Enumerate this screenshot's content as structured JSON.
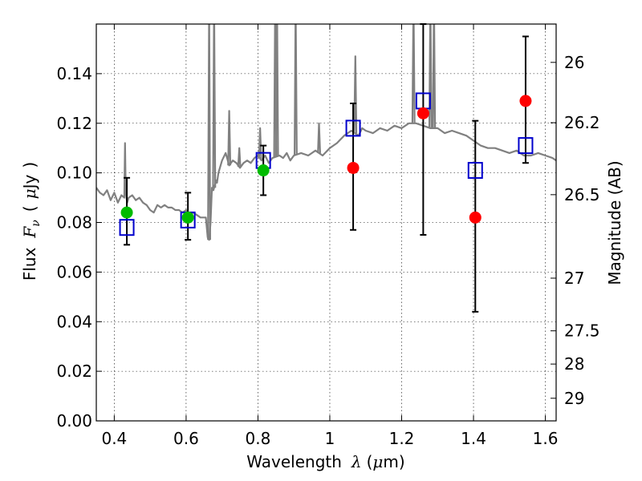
{
  "chart_data": {
    "type": "scatter",
    "xlabel": {
      "prefix": "Wavelength",
      "symbol": "λ",
      "unit_open": "(",
      "unit_mu": "μ",
      "unit_rest": "m)"
    },
    "ylabel": {
      "prefix": "Flux",
      "symbol": "F",
      "subscript": "ν",
      "unit_open": "(",
      "unit_mu": "μ",
      "unit_rest": "Jy",
      "unit_close": ")"
    },
    "y2label": "Magnitude (AB)",
    "xlim": [
      0.35,
      1.63
    ],
    "ylim": [
      0.0,
      0.16
    ],
    "grid": true,
    "x_ticks": [
      {
        "value": 0.4,
        "label": "0.4"
      },
      {
        "value": 0.6,
        "label": "0.6"
      },
      {
        "value": 0.8,
        "label": "0.8"
      },
      {
        "value": 1.0,
        "label": "1"
      },
      {
        "value": 1.2,
        "label": "1.2"
      },
      {
        "value": 1.4,
        "label": "1.4"
      },
      {
        "value": 1.6,
        "label": "1.6"
      }
    ],
    "y_ticks": [
      {
        "value": 0.0,
        "label": "0.00"
      },
      {
        "value": 0.02,
        "label": "0.02"
      },
      {
        "value": 0.04,
        "label": "0.04"
      },
      {
        "value": 0.06,
        "label": "0.06"
      },
      {
        "value": 0.08,
        "label": "0.08"
      },
      {
        "value": 0.1,
        "label": "0.10"
      },
      {
        "value": 0.12,
        "label": "0.12"
      },
      {
        "value": 0.14,
        "label": "0.14"
      }
    ],
    "y2_ticks": [
      {
        "mag": 26,
        "label": "26"
      },
      {
        "mag": 26.2,
        "label": "26.2"
      },
      {
        "mag": 26.5,
        "label": "26.5"
      },
      {
        "mag": 27,
        "label": "27"
      },
      {
        "mag": 27.5,
        "label": "27.5"
      },
      {
        "mag": 28,
        "label": "28"
      },
      {
        "mag": 29,
        "label": "29"
      }
    ],
    "model_spectrum": {
      "color": "#808080",
      "x": [
        0.35,
        0.36,
        0.37,
        0.38,
        0.39,
        0.4,
        0.41,
        0.42,
        0.428,
        0.43,
        0.432,
        0.436,
        0.44,
        0.45,
        0.46,
        0.47,
        0.48,
        0.49,
        0.5,
        0.51,
        0.52,
        0.53,
        0.54,
        0.55,
        0.56,
        0.57,
        0.58,
        0.59,
        0.6,
        0.61,
        0.62,
        0.63,
        0.64,
        0.65,
        0.655,
        0.66,
        0.664,
        0.668,
        0.672,
        0.676,
        0.68,
        0.684,
        0.686,
        0.69,
        0.7,
        0.71,
        0.72,
        0.73,
        0.74,
        0.75,
        0.76,
        0.77,
        0.78,
        0.79,
        0.8,
        0.81,
        0.82,
        0.83,
        0.84,
        0.86,
        0.87,
        0.88,
        0.89,
        0.9,
        0.92,
        0.94,
        0.96,
        0.98,
        1.0,
        1.02,
        1.04,
        1.06,
        1.08,
        1.09,
        1.1,
        1.12,
        1.14,
        1.16,
        1.18,
        1.2,
        1.22,
        1.24,
        1.26,
        1.28,
        1.3,
        1.32,
        1.34,
        1.36,
        1.38,
        1.4,
        1.42,
        1.44,
        1.46,
        1.48,
        1.5,
        1.52,
        1.54,
        1.56,
        1.58,
        1.6,
        1.62,
        1.63
      ],
      "y": [
        0.094,
        0.092,
        0.091,
        0.093,
        0.089,
        0.092,
        0.088,
        0.091,
        0.09,
        0.112,
        0.092,
        0.088,
        0.09,
        0.091,
        0.089,
        0.09,
        0.088,
        0.087,
        0.085,
        0.084,
        0.087,
        0.086,
        0.087,
        0.086,
        0.086,
        0.085,
        0.085,
        0.084,
        0.085,
        0.083,
        0.084,
        0.083,
        0.082,
        0.082,
        0.082,
        0.074,
        0.073,
        0.08,
        0.094,
        0.093,
        0.095,
        0.097,
        0.096,
        0.1,
        0.105,
        0.108,
        0.103,
        0.105,
        0.104,
        0.102,
        0.104,
        0.105,
        0.104,
        0.106,
        0.107,
        0.105,
        0.107,
        0.104,
        0.106,
        0.107,
        0.106,
        0.108,
        0.105,
        0.107,
        0.108,
        0.107,
        0.109,
        0.107,
        0.11,
        0.112,
        0.115,
        0.117,
        0.115,
        0.118,
        0.117,
        0.116,
        0.118,
        0.117,
        0.119,
        0.118,
        0.12,
        0.12,
        0.119,
        0.118,
        0.118,
        0.116,
        0.117,
        0.116,
        0.115,
        0.113,
        0.111,
        0.11,
        0.11,
        0.109,
        0.108,
        0.109,
        0.107,
        0.107,
        0.108,
        0.107,
        0.106,
        0.105
      ],
      "emission_lines": [
        {
          "x": 0.664,
          "peak": 0.17
        },
        {
          "x": 0.678,
          "peak": 0.17
        },
        {
          "x": 0.72,
          "peak": 0.125
        },
        {
          "x": 0.748,
          "peak": 0.11
        },
        {
          "x": 0.806,
          "peak": 0.118
        },
        {
          "x": 0.848,
          "peak": 0.17
        },
        {
          "x": 0.853,
          "peak": 0.17
        },
        {
          "x": 0.905,
          "peak": 0.17
        },
        {
          "x": 0.97,
          "peak": 0.12
        },
        {
          "x": 1.071,
          "peak": 0.147
        },
        {
          "x": 1.233,
          "peak": 0.17
        },
        {
          "x": 1.28,
          "peak": 0.17
        },
        {
          "x": 1.29,
          "peak": 0.17
        },
        {
          "x": 1.535,
          "peak": 0.108
        },
        {
          "x": 1.545,
          "peak": 0.107
        }
      ]
    },
    "series": [
      {
        "name": "",
        "marker": "square-open",
        "color": "#0000cc",
        "points": [
          {
            "x": 0.435,
            "y": 0.078,
            "yerr_low": 0.071,
            "yerr_high": 0.098
          },
          {
            "x": 0.605,
            "y": 0.081,
            "yerr_low": 0.073,
            "yerr_high": 0.092
          },
          {
            "x": 0.815,
            "y": 0.105,
            "yerr_low": 0.091,
            "yerr_high": 0.111
          },
          {
            "x": 1.065,
            "y": 0.118,
            "yerr_low": 0.077,
            "yerr_high": 0.128
          },
          {
            "x": 1.26,
            "y": 0.129,
            "yerr_low": 0.075,
            "yerr_high": 0.16
          },
          {
            "x": 1.405,
            "y": 0.101,
            "yerr_low": 0.044,
            "yerr_high": 0.121
          },
          {
            "x": 1.545,
            "y": 0.111,
            "yerr_low": 0.104,
            "yerr_high": 0.155
          }
        ]
      },
      {
        "name": "",
        "marker": "circle",
        "color": "#00bb00",
        "points": [
          {
            "x": 0.435,
            "y": 0.084
          },
          {
            "x": 0.605,
            "y": 0.082
          },
          {
            "x": 0.815,
            "y": 0.101
          }
        ]
      },
      {
        "name": "",
        "marker": "circle",
        "color": "#ff0000",
        "points": [
          {
            "x": 1.065,
            "y": 0.102
          },
          {
            "x": 1.26,
            "y": 0.124
          },
          {
            "x": 1.405,
            "y": 0.082
          },
          {
            "x": 1.545,
            "y": 0.129
          }
        ]
      }
    ]
  }
}
